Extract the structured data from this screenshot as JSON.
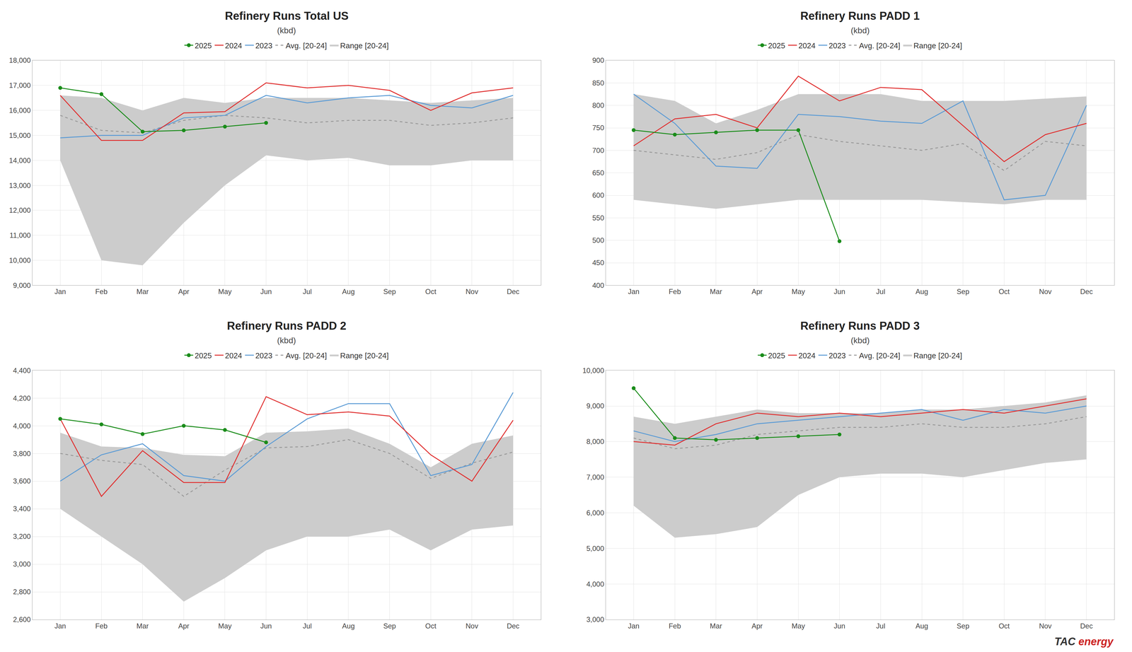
{
  "chart_data": [
    {
      "type": "line",
      "title": "Refinery Runs Total US",
      "subtitle": "(kbd)",
      "categories": [
        "Jan",
        "Feb",
        "Mar",
        "Apr",
        "May",
        "Jun",
        "Jul",
        "Aug",
        "Sep",
        "Oct",
        "Nov",
        "Dec"
      ],
      "ylim": [
        9000,
        18000
      ],
      "yticks": [
        {
          "value": 9000,
          "label": "9,000"
        },
        {
          "value": 10000,
          "label": "10,000"
        },
        {
          "value": 11000,
          "label": "11,000"
        },
        {
          "value": 12000,
          "label": "12,000"
        },
        {
          "value": 13000,
          "label": "13,000"
        },
        {
          "value": 14000,
          "label": "14,000"
        },
        {
          "value": 15000,
          "label": "15,000"
        },
        {
          "value": 16000,
          "label": "16,000"
        },
        {
          "value": 17000,
          "label": "17,000"
        },
        {
          "value": 18000,
          "label": "18,000"
        }
      ],
      "grid": true,
      "series": [
        {
          "name": "2025",
          "color": "#1a8c1a",
          "marker": "circle",
          "values": [
            16900,
            16650,
            15150,
            15200,
            15350,
            15500,
            null,
            null,
            null,
            null,
            null,
            null
          ]
        },
        {
          "name": "2024",
          "color": "#e03030",
          "values": [
            16600,
            14800,
            14800,
            15900,
            15950,
            17100,
            16900,
            17000,
            16800,
            16000,
            16700,
            16900
          ]
        },
        {
          "name": "2023",
          "color": "#5b9bd5",
          "values": [
            14900,
            15000,
            15000,
            15700,
            15800,
            16600,
            16300,
            16500,
            16600,
            16200,
            16100,
            16600
          ]
        },
        {
          "name": "Avg. [20-24]",
          "color": "#999999",
          "line_style": "dashed",
          "values": [
            15800,
            15200,
            15100,
            15600,
            15800,
            15700,
            15500,
            15600,
            15600,
            15400,
            15500,
            15700
          ]
        },
        {
          "name": "Range [20-24]",
          "type": "area",
          "color": "#cccccc",
          "low": [
            14000,
            10000,
            9800,
            11500,
            13000,
            14200,
            14000,
            14100,
            13800,
            13800,
            14000,
            14000
          ],
          "high": [
            16600,
            16500,
            16000,
            16500,
            16300,
            16500,
            16500,
            16500,
            16400,
            16300,
            16400,
            16500
          ]
        }
      ]
    },
    {
      "type": "line",
      "title": "Refinery Runs PADD 1",
      "subtitle": "(kbd)",
      "categories": [
        "Jan",
        "Feb",
        "Mar",
        "Apr",
        "May",
        "Jun",
        "Jul",
        "Aug",
        "Sep",
        "Oct",
        "Nov",
        "Dec"
      ],
      "ylim": [
        400,
        900
      ],
      "yticks": [
        400,
        450,
        500,
        550,
        600,
        650,
        700,
        750,
        800,
        850,
        900
      ],
      "grid": true,
      "series": [
        {
          "name": "2025",
          "color": "#1a8c1a",
          "marker": "circle",
          "values": [
            745,
            735,
            740,
            745,
            745,
            498,
            null,
            null,
            null,
            null,
            null,
            null
          ]
        },
        {
          "name": "2024",
          "color": "#e03030",
          "values": [
            710,
            770,
            780,
            750,
            865,
            810,
            840,
            835,
            755,
            675,
            735,
            760
          ]
        },
        {
          "name": "2023",
          "color": "#5b9bd5",
          "values": [
            825,
            760,
            665,
            660,
            780,
            775,
            765,
            760,
            810,
            590,
            600,
            800
          ]
        },
        {
          "name": "Avg. [20-24]",
          "color": "#999999",
          "line_style": "dashed",
          "values": [
            700,
            690,
            680,
            695,
            735,
            720,
            710,
            700,
            715,
            655,
            720,
            710
          ]
        },
        {
          "name": "Range [20-24]",
          "type": "area",
          "color": "#cccccc",
          "low": [
            590,
            580,
            570,
            580,
            590,
            590,
            590,
            590,
            585,
            580,
            590,
            590
          ],
          "high": [
            825,
            810,
            760,
            790,
            825,
            825,
            825,
            810,
            810,
            810,
            815,
            820
          ]
        }
      ]
    },
    {
      "type": "line",
      "title": "Refinery Runs PADD 2",
      "subtitle": "(kbd)",
      "categories": [
        "Jan",
        "Feb",
        "Mar",
        "Apr",
        "May",
        "Jun",
        "Jul",
        "Aug",
        "Sep",
        "Oct",
        "Nov",
        "Dec"
      ],
      "ylim": [
        2600,
        4400
      ],
      "yticks": [
        {
          "value": 2600,
          "label": "2,600"
        },
        {
          "value": 2800,
          "label": "2,800"
        },
        {
          "value": 3000,
          "label": "3,000"
        },
        {
          "value": 3200,
          "label": "3,200"
        },
        {
          "value": 3400,
          "label": "3,400"
        },
        {
          "value": 3600,
          "label": "3,600"
        },
        {
          "value": 3800,
          "label": "3,800"
        },
        {
          "value": 4000,
          "label": "4,000"
        },
        {
          "value": 4200,
          "label": "4,200"
        },
        {
          "value": 4400,
          "label": "4,400"
        }
      ],
      "grid": true,
      "series": [
        {
          "name": "2025",
          "color": "#1a8c1a",
          "marker": "circle",
          "values": [
            4050,
            4010,
            3940,
            4000,
            3970,
            3880,
            null,
            null,
            null,
            null,
            null,
            null
          ]
        },
        {
          "name": "2024",
          "color": "#e03030",
          "values": [
            4050,
            3490,
            3820,
            3590,
            3590,
            4210,
            4080,
            4100,
            4070,
            3790,
            3600,
            4040
          ]
        },
        {
          "name": "2023",
          "color": "#5b9bd5",
          "values": [
            3600,
            3790,
            3870,
            3640,
            3600,
            3850,
            4050,
            4160,
            4160,
            3640,
            3720,
            4240
          ]
        },
        {
          "name": "Avg. [20-24]",
          "color": "#999999",
          "line_style": "dashed",
          "values": [
            3800,
            3750,
            3720,
            3490,
            3680,
            3840,
            3850,
            3900,
            3800,
            3620,
            3730,
            3810
          ]
        },
        {
          "name": "Range [20-24]",
          "type": "area",
          "color": "#cccccc",
          "low": [
            3400,
            3200,
            3000,
            2730,
            2900,
            3100,
            3200,
            3200,
            3250,
            3100,
            3250,
            3280
          ],
          "high": [
            3950,
            3850,
            3840,
            3790,
            3780,
            3950,
            3960,
            3980,
            3870,
            3700,
            3870,
            3930
          ]
        }
      ]
    },
    {
      "type": "line",
      "title": "Refinery Runs PADD 3",
      "subtitle": "(kbd)",
      "categories": [
        "Jan",
        "Feb",
        "Mar",
        "Apr",
        "May",
        "Jun",
        "Jul",
        "Aug",
        "Sep",
        "Oct",
        "Nov",
        "Dec"
      ],
      "ylim": [
        3000,
        10000
      ],
      "yticks": [
        {
          "value": 3000,
          "label": "3,000"
        },
        {
          "value": 4000,
          "label": "4,000"
        },
        {
          "value": 5000,
          "label": "5,000"
        },
        {
          "value": 6000,
          "label": "6,000"
        },
        {
          "value": 7000,
          "label": "7,000"
        },
        {
          "value": 8000,
          "label": "8,000"
        },
        {
          "value": 9000,
          "label": "9,000"
        },
        {
          "value": 10000,
          "label": "10,000"
        }
      ],
      "grid": true,
      "series": [
        {
          "name": "2025",
          "color": "#1a8c1a",
          "marker": "circle",
          "values": [
            9500,
            8100,
            8050,
            8100,
            8150,
            8200,
            null,
            null,
            null,
            null,
            null,
            null
          ]
        },
        {
          "name": "2024",
          "color": "#e03030",
          "values": [
            8000,
            7900,
            8500,
            8800,
            8700,
            8800,
            8700,
            8800,
            8900,
            8800,
            9000,
            9200
          ]
        },
        {
          "name": "2023",
          "color": "#5b9bd5",
          "values": [
            8300,
            8000,
            8200,
            8500,
            8600,
            8700,
            8800,
            8900,
            8600,
            8900,
            8800,
            9000
          ]
        },
        {
          "name": "Avg. [20-24]",
          "color": "#999999",
          "line_style": "dashed",
          "values": [
            8100,
            7800,
            7900,
            8200,
            8300,
            8400,
            8400,
            8500,
            8400,
            8400,
            8500,
            8700
          ]
        },
        {
          "name": "Range [20-24]",
          "type": "area",
          "color": "#cccccc",
          "low": [
            6200,
            5300,
            5400,
            5600,
            6500,
            7000,
            7100,
            7100,
            7000,
            7200,
            7400,
            7500
          ],
          "high": [
            8700,
            8500,
            8700,
            8900,
            8800,
            8800,
            8800,
            8900,
            8900,
            9000,
            9100,
            9300
          ]
        }
      ],
      "annotations": [
        {
          "text": "TAC",
          "color": "#333333"
        },
        {
          "text": "energy",
          "color": "#cc2222"
        }
      ]
    }
  ]
}
